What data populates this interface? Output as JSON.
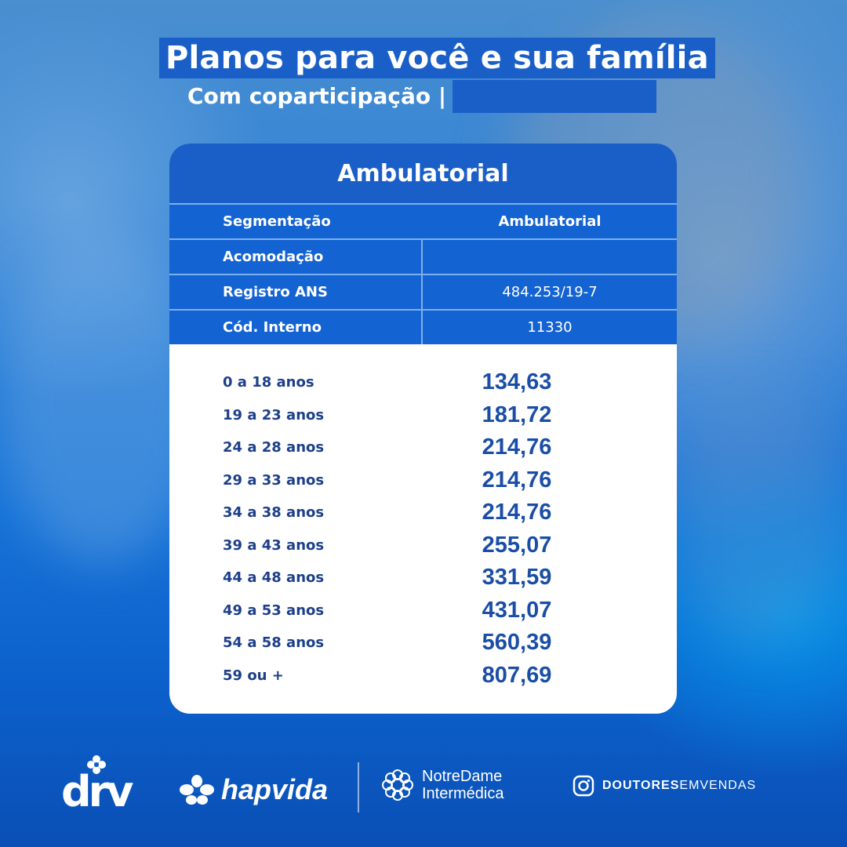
{
  "header": {
    "title": "Planos para você e sua família",
    "subtitle": "Com coparticipação |"
  },
  "card": {
    "title": "Ambulatorial",
    "info": [
      {
        "label": "Segmentação",
        "value": "Ambulatorial"
      },
      {
        "label": "Acomodação",
        "value": ""
      },
      {
        "label": "Registro ANS",
        "value": "484.253/19-7"
      },
      {
        "label": "Cód. Interno",
        "value": "11330"
      }
    ],
    "prices": [
      {
        "age": "0 a 18 anos",
        "value": "134,63"
      },
      {
        "age": "19 a 23 anos",
        "value": "181,72"
      },
      {
        "age": "24 a 28 anos",
        "value": "214,76"
      },
      {
        "age": "29 a 33 anos",
        "value": "214,76"
      },
      {
        "age": "34 a 38 anos",
        "value": "214,76"
      },
      {
        "age": "39 a 43 anos",
        "value": "255,07"
      },
      {
        "age": "44 a 48 anos",
        "value": "331,59"
      },
      {
        "age": "49 a 53 anos",
        "value": "431,07"
      },
      {
        "age": "54 a 58 anos",
        "value": "560,39"
      },
      {
        "age": "59 ou +",
        "value": "807,69"
      }
    ]
  },
  "footer": {
    "logo_drv": "drv",
    "logo_hapvida": "hapvida",
    "logo_notredame_line1": "NotreDame",
    "logo_notredame_line2": "Intermédica",
    "instagram_bold": "DOUTORES",
    "instagram_rest": "EMVENDAS"
  },
  "colors": {
    "accent_blue": "#1a5fc8",
    "table_blue": "#1463d2",
    "price_text": "#1a4ea6",
    "age_text": "#1d3f8a"
  }
}
